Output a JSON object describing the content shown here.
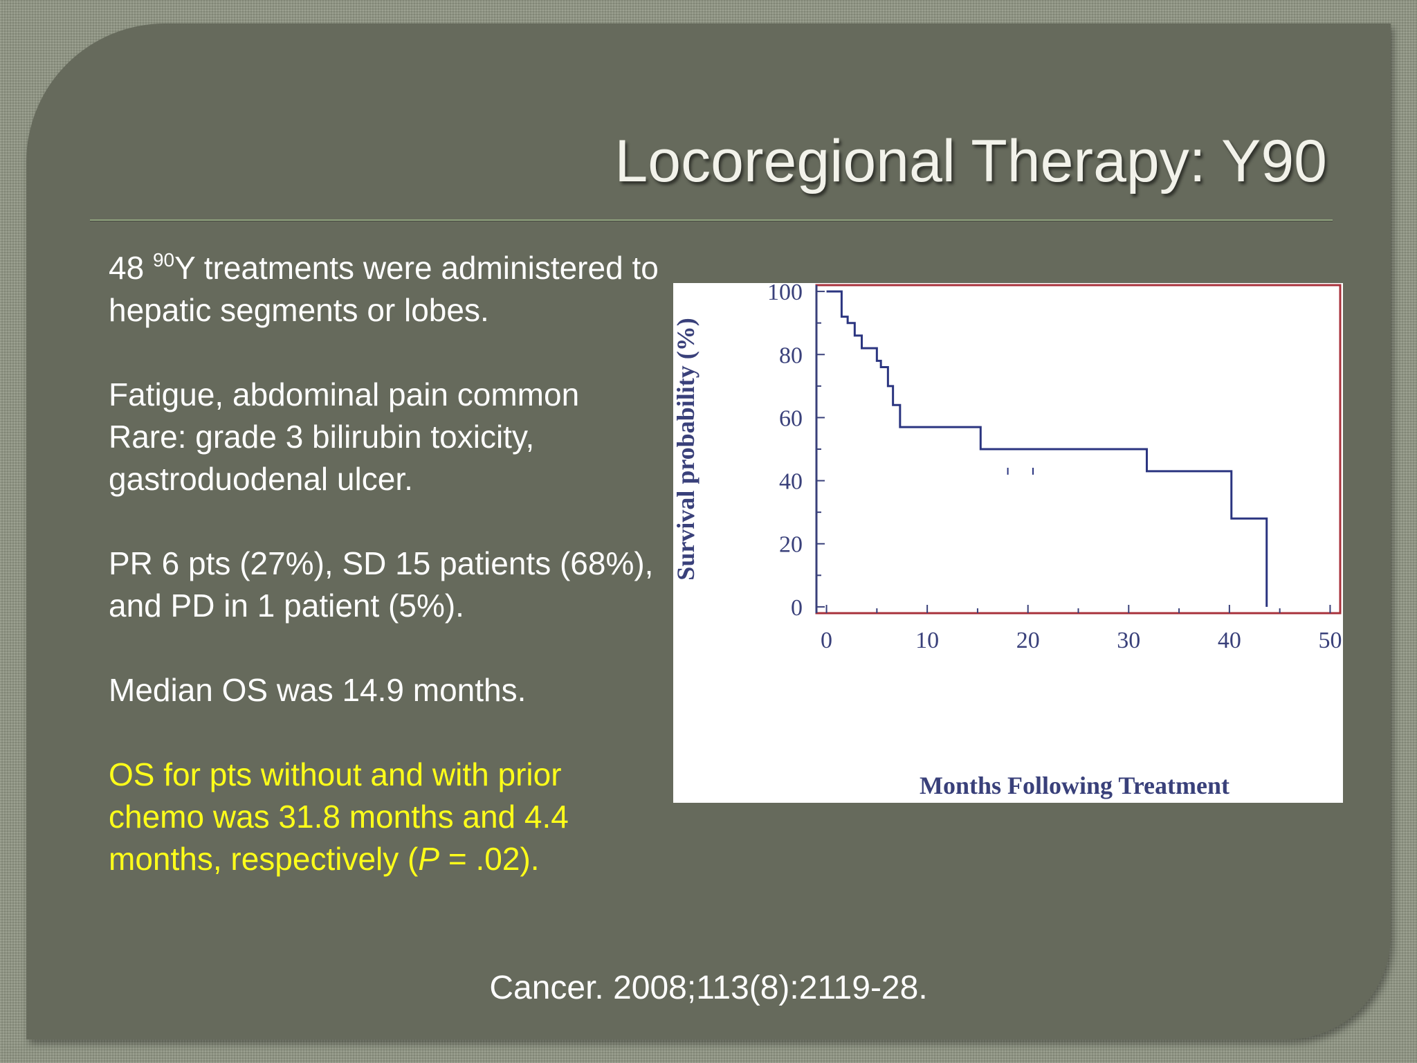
{
  "slide": {
    "title": "Locoregional Therapy: Y90",
    "citation": "Cancer. 2008;113(8):2119-28."
  },
  "body": {
    "p1_pre": "48 ",
    "p1_sup": "90",
    "p1_post": "Y treatments were administered to hepatic segments or lobes.",
    "p2_line1": "Fatigue, abdominal pain common",
    "p2_line2": "Rare: grade 3 bilirubin toxicity, gastroduodenal ulcer.",
    "p3": "PR 6 pts (27%), SD 15 patients (68%), and PD in 1 patient (5%).",
    "p4": "Median OS was 14.9 months.",
    "p5_pre": "OS for pts without and with prior chemo was 31.8 months and 4.4 months, respectively (",
    "p5_p": "P",
    "p5_post": " = .02)."
  },
  "colors": {
    "highlight": "#ffff1a",
    "curve": "#2b3580",
    "frame": "#a8313b",
    "slide_bg": "#666a5c"
  },
  "chart_data": {
    "type": "line",
    "subtype": "kaplan-meier step",
    "title": "",
    "xlabel": "Months Following Treatment",
    "ylabel": "Survival probability (%)",
    "xlim": [
      -1,
      51
    ],
    "ylim": [
      -2,
      102
    ],
    "xticks": [
      0,
      10,
      20,
      30,
      40,
      50
    ],
    "yticks": [
      0,
      20,
      40,
      60,
      80,
      100
    ],
    "grid": false,
    "legend": "none",
    "series": [
      {
        "x": [
          0,
          1.5,
          2.1,
          2.8,
          3.5,
          5,
          5.4,
          6.1,
          6.6,
          7.3,
          15.3,
          31.8,
          40.2,
          43.7
        ],
        "y": [
          100,
          92,
          90,
          86,
          82,
          78,
          76,
          70,
          64,
          57,
          50,
          43,
          28,
          14
        ],
        "end": [
          43.7,
          0
        ],
        "censored": [
          [
            18,
            43
          ],
          [
            20.5,
            43
          ]
        ]
      }
    ]
  }
}
